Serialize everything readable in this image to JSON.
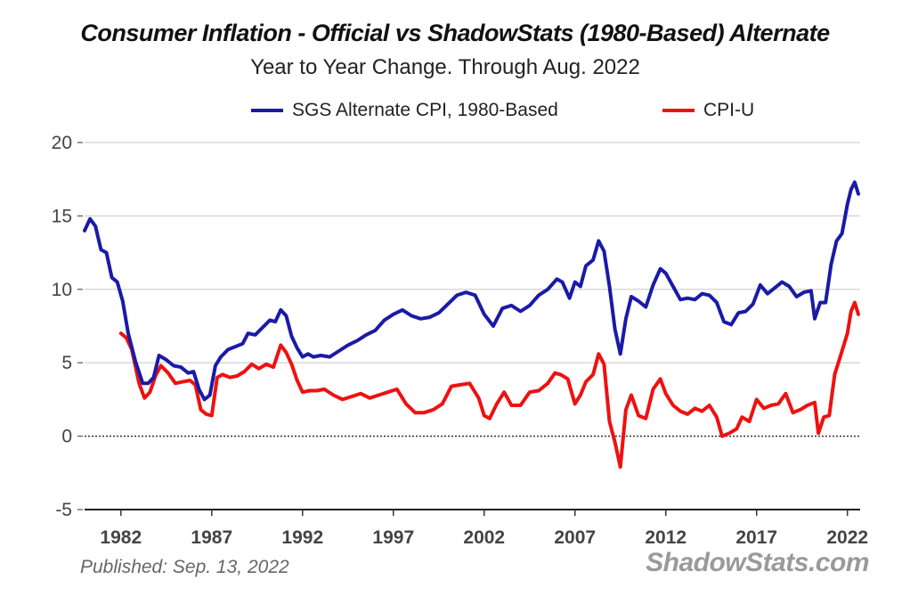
{
  "chart_data": {
    "type": "line",
    "title": "Consumer Inflation - Official vs ShadowStats (1980-Based) Alternate",
    "subtitle": "Year to Year Change. Through Aug. 2022",
    "xlabel": "",
    "ylabel": "",
    "ylim": [
      -5,
      20
    ],
    "xlim": [
      1980,
      2022.7
    ],
    "yticks": [
      -5,
      0,
      5,
      10,
      15,
      20
    ],
    "xticks": [
      1982,
      1987,
      1992,
      1997,
      2002,
      2007,
      2012,
      2017,
      2022
    ],
    "grid": true,
    "legend_position": "top",
    "published": "Published: Sep. 13, 2022",
    "source": "ShadowStats.com",
    "series": [
      {
        "name": "SGS Alternate CPI, 1980-Based",
        "color": "#1a1aa8",
        "x": [
          1980.0,
          1980.3,
          1980.6,
          1980.9,
          1981.2,
          1981.5,
          1981.8,
          1982.1,
          1982.4,
          1982.8,
          1983.2,
          1983.5,
          1983.8,
          1984.1,
          1984.5,
          1984.9,
          1985.3,
          1985.7,
          1986.0,
          1986.3,
          1986.6,
          1986.9,
          1987.2,
          1987.5,
          1987.9,
          1988.3,
          1988.7,
          1989.0,
          1989.4,
          1989.8,
          1990.2,
          1990.5,
          1990.8,
          1991.1,
          1991.4,
          1991.7,
          1992.0,
          1992.3,
          1992.6,
          1993.0,
          1993.5,
          1994.0,
          1994.5,
          1995.0,
          1995.5,
          1996.0,
          1996.5,
          1997.0,
          1997.5,
          1998.0,
          1998.5,
          1999.0,
          1999.5,
          2000.0,
          2000.5,
          2001.0,
          2001.5,
          2002.0,
          2002.5,
          2003.0,
          2003.5,
          2004.0,
          2004.5,
          2005.0,
          2005.5,
          2006.0,
          2006.3,
          2006.7,
          2007.0,
          2007.3,
          2007.6,
          2008.0,
          2008.3,
          2008.6,
          2008.9,
          2009.2,
          2009.5,
          2009.8,
          2010.1,
          2010.5,
          2010.9,
          2011.3,
          2011.7,
          2012.0,
          2012.4,
          2012.8,
          2013.2,
          2013.6,
          2014.0,
          2014.4,
          2014.8,
          2015.2,
          2015.6,
          2016.0,
          2016.4,
          2016.8,
          2017.2,
          2017.6,
          2018.0,
          2018.4,
          2018.8,
          2019.2,
          2019.6,
          2020.0,
          2020.2,
          2020.5,
          2020.8,
          2021.1,
          2021.4,
          2021.7,
          2022.0,
          2022.2,
          2022.4,
          2022.6
        ],
        "values": [
          14.0,
          14.8,
          14.3,
          12.7,
          12.5,
          10.8,
          10.5,
          9.2,
          7.0,
          5.1,
          3.6,
          3.6,
          4.0,
          5.5,
          5.2,
          4.8,
          4.7,
          4.3,
          4.4,
          3.2,
          2.5,
          2.8,
          4.8,
          5.4,
          5.9,
          6.1,
          6.3,
          7.0,
          6.9,
          7.4,
          7.9,
          7.8,
          8.6,
          8.2,
          6.8,
          6.0,
          5.4,
          5.6,
          5.4,
          5.5,
          5.4,
          5.8,
          6.2,
          6.5,
          6.9,
          7.2,
          7.9,
          8.3,
          8.6,
          8.2,
          8.0,
          8.1,
          8.4,
          9.0,
          9.6,
          9.8,
          9.6,
          8.3,
          7.5,
          8.7,
          8.9,
          8.5,
          8.9,
          9.6,
          10.0,
          10.7,
          10.5,
          9.4,
          10.5,
          10.2,
          11.6,
          12.0,
          13.3,
          12.6,
          10.2,
          7.3,
          5.6,
          8.0,
          9.5,
          9.2,
          8.8,
          10.3,
          11.4,
          11.1,
          10.2,
          9.3,
          9.4,
          9.3,
          9.7,
          9.6,
          9.1,
          7.8,
          7.6,
          8.4,
          8.5,
          9.0,
          10.3,
          9.7,
          10.1,
          10.5,
          10.2,
          9.5,
          9.8,
          9.9,
          8.0,
          9.1,
          9.1,
          11.7,
          13.3,
          13.8,
          15.8,
          16.8,
          17.3,
          16.5
        ]
      },
      {
        "name": "CPI-U",
        "color": "#ee1111",
        "x": [
          1982.0,
          1982.3,
          1982.6,
          1983.0,
          1983.3,
          1983.6,
          1983.9,
          1984.2,
          1984.6,
          1985.0,
          1985.4,
          1985.8,
          1986.1,
          1986.4,
          1986.7,
          1987.0,
          1987.3,
          1987.6,
          1988.0,
          1988.4,
          1988.8,
          1989.2,
          1989.6,
          1990.0,
          1990.4,
          1990.8,
          1991.1,
          1991.4,
          1991.7,
          1992.0,
          1992.4,
          1992.8,
          1993.2,
          1993.7,
          1994.2,
          1994.7,
          1995.2,
          1995.7,
          1996.2,
          1996.7,
          1997.2,
          1997.7,
          1998.2,
          1998.7,
          1999.2,
          1999.7,
          2000.2,
          2000.7,
          2001.2,
          2001.7,
          2002.0,
          2002.3,
          2002.7,
          2003.1,
          2003.5,
          2004.0,
          2004.5,
          2005.0,
          2005.5,
          2005.9,
          2006.2,
          2006.6,
          2007.0,
          2007.3,
          2007.6,
          2008.0,
          2008.3,
          2008.6,
          2008.9,
          2009.2,
          2009.5,
          2009.8,
          2010.1,
          2010.5,
          2010.9,
          2011.3,
          2011.7,
          2012.0,
          2012.4,
          2012.8,
          2013.2,
          2013.6,
          2014.0,
          2014.4,
          2014.8,
          2015.1,
          2015.5,
          2015.9,
          2016.2,
          2016.6,
          2017.0,
          2017.4,
          2017.8,
          2018.2,
          2018.6,
          2019.0,
          2019.4,
          2019.8,
          2020.2,
          2020.4,
          2020.7,
          2021.0,
          2021.3,
          2021.6,
          2022.0,
          2022.2,
          2022.4,
          2022.6
        ],
        "values": [
          7.0,
          6.7,
          5.9,
          3.6,
          2.6,
          3.0,
          4.1,
          4.8,
          4.3,
          3.6,
          3.7,
          3.8,
          3.5,
          1.8,
          1.5,
          1.4,
          4.0,
          4.2,
          4.0,
          4.1,
          4.4,
          4.9,
          4.6,
          4.9,
          4.7,
          6.2,
          5.7,
          4.9,
          3.8,
          3.0,
          3.1,
          3.1,
          3.2,
          2.8,
          2.5,
          2.7,
          2.9,
          2.6,
          2.8,
          3.0,
          3.2,
          2.2,
          1.6,
          1.6,
          1.8,
          2.2,
          3.4,
          3.5,
          3.6,
          2.6,
          1.4,
          1.2,
          2.2,
          3.0,
          2.1,
          2.1,
          3.0,
          3.1,
          3.6,
          4.3,
          4.2,
          3.9,
          2.2,
          2.8,
          3.7,
          4.2,
          5.6,
          4.9,
          1.0,
          -0.4,
          -2.1,
          1.8,
          2.8,
          1.4,
          1.2,
          3.2,
          3.9,
          2.9,
          2.1,
          1.7,
          1.5,
          1.9,
          1.7,
          2.1,
          1.3,
          0.0,
          0.2,
          0.5,
          1.3,
          1.0,
          2.5,
          1.9,
          2.1,
          2.2,
          2.9,
          1.6,
          1.8,
          2.1,
          2.3,
          0.2,
          1.3,
          1.4,
          4.2,
          5.4,
          7.0,
          8.5,
          9.1,
          8.3
        ]
      }
    ]
  }
}
